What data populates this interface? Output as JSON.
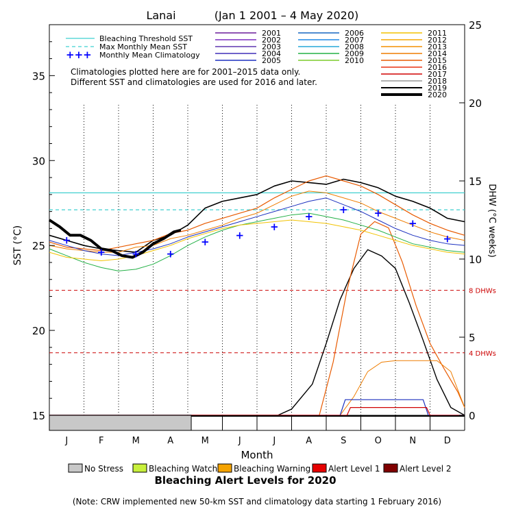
{
  "chart_data": {
    "type": "line",
    "site": "Lanai",
    "period": "(Jan 1 2001 – 4 May 2020)",
    "xlabel": "Month",
    "ylabel_left": "SST (°C)",
    "ylabel_right": "DHW (°C weeks)",
    "months": [
      "J",
      "F",
      "M",
      "A",
      "M",
      "J",
      "J",
      "A",
      "S",
      "O",
      "N",
      "D"
    ],
    "sst_ylim": [
      15,
      38
    ],
    "sst_ticks": [
      15,
      20,
      25,
      30,
      35
    ],
    "dhw_ylim": [
      0,
      25
    ],
    "dhw_ticks": [
      0,
      5,
      10,
      15,
      20,
      25
    ],
    "bleaching_threshold_sst": 28.1,
    "max_monthly_mean_sst": 27.1,
    "dhw_alert_lines": [
      {
        "label": "8 DHWs",
        "dhw": 8
      },
      {
        "label": "4 DHWs",
        "dhw": 4
      }
    ],
    "legend": {
      "lines": [
        {
          "label": "Bleaching Threshold SST",
          "color": "#3fd0d0",
          "style": "solid"
        },
        {
          "label": "Max Monthly Mean SST",
          "color": "#3fd0d0",
          "style": "dashed"
        },
        {
          "label": "Monthly Mean Climatology",
          "color": "#0000ff",
          "style": "plus"
        }
      ],
      "years": [
        {
          "year": "2001",
          "color": "#6a1b9a"
        },
        {
          "year": "2002",
          "color": "#7b2cbf"
        },
        {
          "year": "2003",
          "color": "#5e35b1"
        },
        {
          "year": "2004",
          "color": "#3f2fb8"
        },
        {
          "year": "2005",
          "color": "#1a2fbf"
        },
        {
          "year": "2006",
          "color": "#1565c0"
        },
        {
          "year": "2007",
          "color": "#1e88e5"
        },
        {
          "year": "2008",
          "color": "#26a8d8"
        },
        {
          "year": "2009",
          "color": "#22b045"
        },
        {
          "year": "2010",
          "color": "#7ccc2a"
        },
        {
          "year": "2011",
          "color": "#f2c200"
        },
        {
          "year": "2012",
          "color": "#f5a800"
        },
        {
          "year": "2013",
          "color": "#f39000"
        },
        {
          "year": "2014",
          "color": "#ef7d00"
        },
        {
          "year": "2015",
          "color": "#e85a00"
        },
        {
          "year": "2016",
          "color": "#e83010"
        },
        {
          "year": "2017",
          "color": "#d00000"
        },
        {
          "year": "2018",
          "color": "#999999"
        },
        {
          "year": "2019",
          "color": "#000000"
        },
        {
          "year": "2020",
          "color": "#000000"
        }
      ]
    },
    "climatology_note": [
      "Climatologies plotted here are for 2001–2015 data only.",
      "Different SST and climatologies are used for 2016 and later."
    ],
    "monthly_mean_climatology": {
      "x": [
        0.5,
        1.5,
        2.5,
        3.5,
        4.5,
        5.5,
        6.5,
        7.5,
        8.5,
        9.5,
        10.5,
        11.5
      ],
      "sst": [
        25.3,
        24.6,
        24.5,
        24.5,
        25.2,
        25.6,
        26.1,
        26.7,
        27.1,
        26.9,
        26.3,
        25.4
      ]
    },
    "series_sst": [
      {
        "name": "2019",
        "color": "#000000",
        "width": 1.6,
        "x": [
          0,
          0.5,
          1,
          1.5,
          2,
          2.5,
          3,
          3.5,
          4,
          4.5,
          5,
          5.5,
          6,
          6.5,
          7,
          7.5,
          8,
          8.5,
          9,
          9.5,
          10,
          10.5,
          11,
          11.5,
          12
        ],
        "sst": [
          25.6,
          25.3,
          25.0,
          24.8,
          24.7,
          24.6,
          25.3,
          25.6,
          26.2,
          27.2,
          27.6,
          27.8,
          28.0,
          28.5,
          28.8,
          28.7,
          28.6,
          28.9,
          28.7,
          28.4,
          27.9,
          27.6,
          27.2,
          26.6,
          26.4
        ]
      },
      {
        "name": "2015",
        "color": "#e85a00",
        "width": 1.2,
        "x": [
          0,
          0.5,
          1,
          1.5,
          2,
          2.5,
          3,
          3.5,
          4,
          4.5,
          5,
          5.5,
          6,
          6.5,
          7,
          7.5,
          8,
          8.5,
          9,
          9.5,
          10,
          10.5,
          11,
          11.5,
          12
        ],
        "sst": [
          25.2,
          24.9,
          24.8,
          24.7,
          24.9,
          25.1,
          25.3,
          25.7,
          25.9,
          26.3,
          26.6,
          26.9,
          27.2,
          27.8,
          28.3,
          28.8,
          29.1,
          28.8,
          28.5,
          28.0,
          27.4,
          26.8,
          26.3,
          25.9,
          25.6
        ]
      },
      {
        "name": "2014",
        "color": "#ef7d00",
        "width": 1.0,
        "x": [
          0,
          0.5,
          1,
          1.5,
          2,
          2.5,
          3,
          3.5,
          4,
          4.5,
          5,
          5.5,
          6,
          6.5,
          7,
          7.5,
          8,
          8.5,
          9,
          9.5,
          10,
          10.5,
          11,
          11.5,
          12
        ],
        "sst": [
          25.0,
          24.8,
          24.7,
          24.6,
          24.6,
          24.9,
          25.0,
          25.4,
          25.6,
          25.9,
          26.2,
          26.6,
          26.9,
          27.4,
          27.9,
          28.2,
          28.1,
          27.8,
          27.5,
          27.0,
          26.6,
          26.2,
          25.8,
          25.5,
          25.3
        ]
      },
      {
        "name": "2005",
        "color": "#1a2fbf",
        "width": 1.0,
        "x": [
          0,
          0.5,
          1,
          1.5,
          2,
          2.5,
          3,
          3.5,
          4,
          4.5,
          5,
          5.5,
          6,
          6.5,
          7,
          7.5,
          8,
          8.5,
          9,
          9.5,
          10,
          10.5,
          11,
          11.5,
          12
        ],
        "sst": [
          25.3,
          25.0,
          24.7,
          24.5,
          24.4,
          24.6,
          24.8,
          25.1,
          25.5,
          25.8,
          26.1,
          26.4,
          26.7,
          27.0,
          27.3,
          27.6,
          27.8,
          27.4,
          27.0,
          26.5,
          26.0,
          25.6,
          25.3,
          25.1,
          25.0
        ]
      },
      {
        "name": "2009",
        "color": "#22b045",
        "width": 1.0,
        "x": [
          0,
          0.5,
          1,
          1.5,
          2,
          2.5,
          3,
          3.5,
          4,
          4.5,
          5,
          5.5,
          6,
          6.5,
          7,
          7.5,
          8,
          8.5,
          9,
          9.5,
          10,
          10.5,
          11,
          11.5,
          12
        ],
        "sst": [
          24.8,
          24.4,
          24.0,
          23.7,
          23.5,
          23.6,
          23.9,
          24.4,
          25.0,
          25.5,
          25.9,
          26.2,
          26.4,
          26.6,
          26.8,
          26.9,
          26.7,
          26.5,
          26.2,
          25.9,
          25.5,
          25.1,
          24.9,
          24.7,
          24.6
        ]
      },
      {
        "name": "2011",
        "color": "#f2c200",
        "width": 1.0,
        "x": [
          0,
          0.5,
          1,
          1.5,
          2,
          2.5,
          3,
          3.5,
          4,
          4.5,
          5,
          5.5,
          6,
          6.5,
          7,
          7.5,
          8,
          8.5,
          9,
          9.5,
          10,
          10.5,
          11,
          11.5,
          12
        ],
        "sst": [
          24.6,
          24.3,
          24.2,
          24.1,
          24.2,
          24.4,
          24.7,
          25.0,
          25.4,
          25.7,
          26.0,
          26.2,
          26.3,
          26.4,
          26.5,
          26.4,
          26.3,
          26.1,
          25.9,
          25.6,
          25.3,
          25.0,
          24.8,
          24.6,
          24.5
        ]
      },
      {
        "name": "2020",
        "color": "#000000",
        "width": 4.0,
        "x": [
          0,
          0.3,
          0.6,
          0.9,
          1.2,
          1.5,
          1.8,
          2.1,
          2.4,
          2.7,
          3.0,
          3.3,
          3.6,
          3.8
        ],
        "sst": [
          26.5,
          26.1,
          25.6,
          25.6,
          25.3,
          24.8,
          24.7,
          24.4,
          24.3,
          24.6,
          25.1,
          25.4,
          25.8,
          25.9
        ]
      }
    ],
    "series_dhw": [
      {
        "name": "2019",
        "color": "#000000",
        "width": 1.4,
        "x": [
          0,
          6.6,
          7.0,
          7.6,
          8.0,
          8.4,
          8.8,
          9.2,
          9.6,
          10.0,
          10.4,
          10.8,
          11.2,
          11.6,
          12
        ],
        "dhw": [
          0,
          0,
          0.4,
          2.0,
          4.6,
          7.4,
          9.4,
          10.6,
          10.2,
          9.4,
          7.2,
          4.8,
          2.3,
          0.5,
          0
        ]
      },
      {
        "name": "2015",
        "color": "#e85a00",
        "width": 1.2,
        "x": [
          0,
          7.8,
          8.2,
          8.6,
          9.0,
          9.4,
          9.8,
          10.2,
          10.6,
          11.0,
          11.4,
          11.8,
          12
        ],
        "dhw": [
          0,
          0,
          3.4,
          8.0,
          11.6,
          12.4,
          12.0,
          9.8,
          7.0,
          4.6,
          3.0,
          1.5,
          0.5
        ]
      },
      {
        "name": "2014",
        "color": "#ef7d00",
        "width": 1.0,
        "x": [
          0,
          8.4,
          8.8,
          9.2,
          9.6,
          10.0,
          10.4,
          10.8,
          11.2,
          11.6,
          12
        ],
        "dhw": [
          0,
          0,
          1.2,
          2.8,
          3.4,
          3.5,
          3.5,
          3.5,
          3.5,
          2.8,
          0.5
        ]
      },
      {
        "name": "2005",
        "color": "#1a2fbf",
        "width": 1.2,
        "x": [
          0,
          8.4,
          8.55,
          9.0,
          10.0,
          10.8,
          10.95,
          12
        ],
        "dhw": [
          0,
          0,
          1.0,
          1.0,
          1.0,
          1.0,
          0,
          0
        ]
      },
      {
        "name": "2016",
        "color": "#d00000",
        "width": 1.2,
        "x": [
          0,
          8.6,
          8.7,
          9.4,
          10.0,
          10.9,
          11.0,
          12
        ],
        "dhw": [
          0,
          0,
          0.5,
          0.5,
          0.5,
          0.5,
          0,
          0
        ]
      }
    ],
    "bottom_bar_2020": {
      "alert": "No Stress",
      "x_end": 4.1
    },
    "alert_levels_title": "Bleaching Alert Levels for 2020",
    "alert_levels": [
      {
        "label": "No Stress",
        "color": "#c8c8c8"
      },
      {
        "label": "Bleaching Watch",
        "color": "#c8f03c"
      },
      {
        "label": "Bleaching Warning",
        "color": "#f5a300"
      },
      {
        "label": "Alert Level 1",
        "color": "#e60000"
      },
      {
        "label": "Alert Level 2",
        "color": "#800000"
      }
    ],
    "note": "(Note: CRW implemented new 50-km SST and climatology data starting 1 February 2016)"
  }
}
